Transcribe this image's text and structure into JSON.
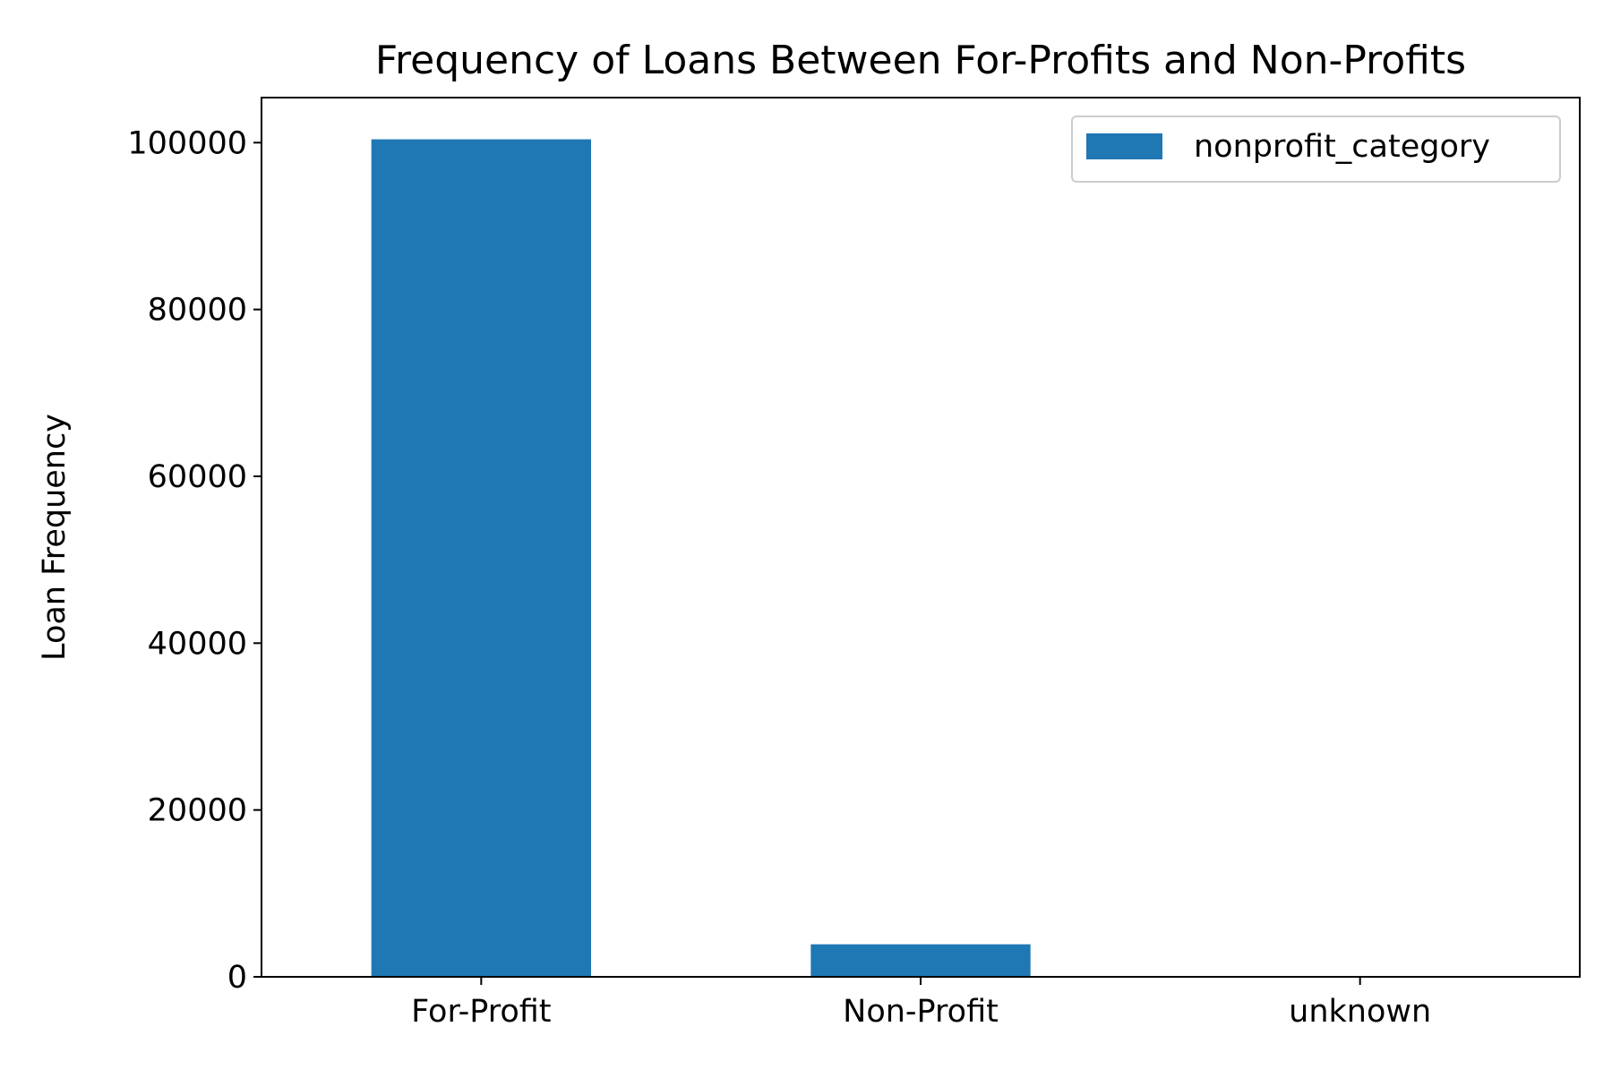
{
  "chart_data": {
    "type": "bar",
    "title": "Frequency of Loans Between For-Profits and Non-Profits",
    "xlabel": "",
    "ylabel": "Loan Frequency",
    "categories": [
      "For-Profit",
      "Non-Profit",
      "unknown"
    ],
    "series": [
      {
        "name": "nonprofit_category",
        "values": [
          100400,
          3900,
          0
        ],
        "color": "#1f77b4"
      }
    ],
    "ylim": [
      0,
      105400
    ],
    "yticks": [
      0,
      20000,
      40000,
      60000,
      80000,
      100000
    ],
    "ytick_labels": [
      "0",
      "20000",
      "40000",
      "60000",
      "80000",
      "100000"
    ],
    "grid": false,
    "legend": {
      "position": "top-right",
      "entries": [
        "nonprofit_category"
      ]
    }
  }
}
